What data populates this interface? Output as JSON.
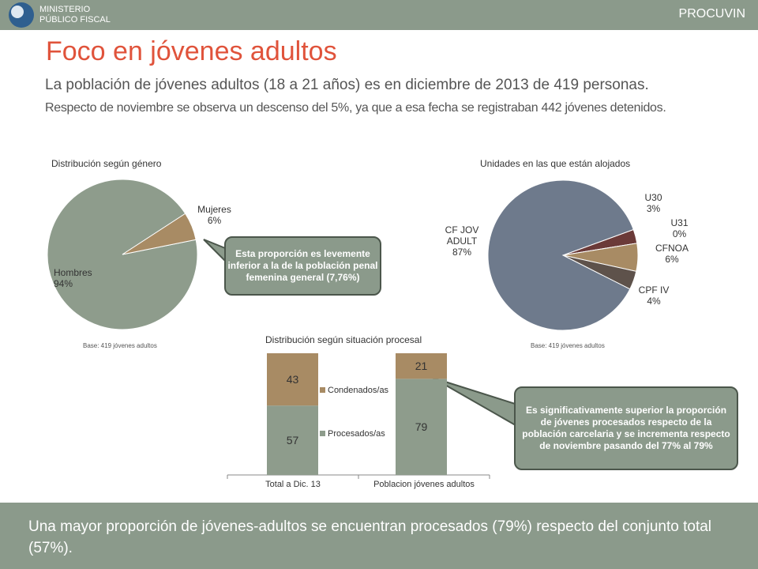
{
  "header": {
    "org_line1": "MINISTERIO",
    "org_line2": "PÚBLICO FISCAL",
    "brand": "PROCUVIN"
  },
  "title": "Foco en jóvenes adultos",
  "lead": "La población de jóvenes adultos (18 a 21 años) es en diciembre de 2013 de 419 personas.",
  "body": "Respecto de noviembre se observa un descenso del 5%, ya que a esa fecha se registraban 442 jóvenes detenidos.",
  "chart_data": [
    {
      "type": "pie",
      "title": "Distribución según género",
      "note": "Base: 419 jóvenes adultos",
      "categories": [
        "Hombres",
        "Mujeres"
      ],
      "values": [
        94,
        6
      ],
      "value_labels": [
        "94%",
        "6%"
      ],
      "colors": [
        "#8e9c8c",
        "#a88b64"
      ]
    },
    {
      "type": "pie",
      "title": "Unidades en las que están alojados",
      "note": "Base: 419 jóvenes adultos",
      "categories": [
        "U30",
        "U31",
        "CFNOA",
        "CPF IV",
        "CF JOV ADULT"
      ],
      "values": [
        3,
        0,
        6,
        4,
        87
      ],
      "value_labels": [
        "3%",
        "0%",
        "6%",
        "4%",
        "87%"
      ],
      "colors": [
        "#6b3a38",
        "#c9d1d6",
        "#a88b64",
        "#5e524b",
        "#6e7a8c"
      ]
    },
    {
      "type": "bar",
      "stacked": true,
      "title": "Distribución según situación procesal",
      "categories": [
        "Total a Dic. 13",
        "Poblacion jóvenes adultos"
      ],
      "series": [
        {
          "name": "Procesados/as",
          "color": "#8e9c8c",
          "values": [
            57,
            79
          ]
        },
        {
          "name": "Condenados/as",
          "color": "#a88b64",
          "values": [
            43,
            21
          ]
        }
      ],
      "ylim": [
        0,
        100
      ]
    }
  ],
  "callouts": [
    "Esta proporción es levemente inferior a la de la población penal femenina general (7,76%)",
    "Es significativamente superior la proporción de jóvenes procesados respecto de la población carcelaria y se incrementa respecto de noviembre pasando del 77% al 79%"
  ],
  "footer": "Una mayor proporción de jóvenes-adultos se encuentran procesados (79%) respecto del conjunto total (57%)."
}
